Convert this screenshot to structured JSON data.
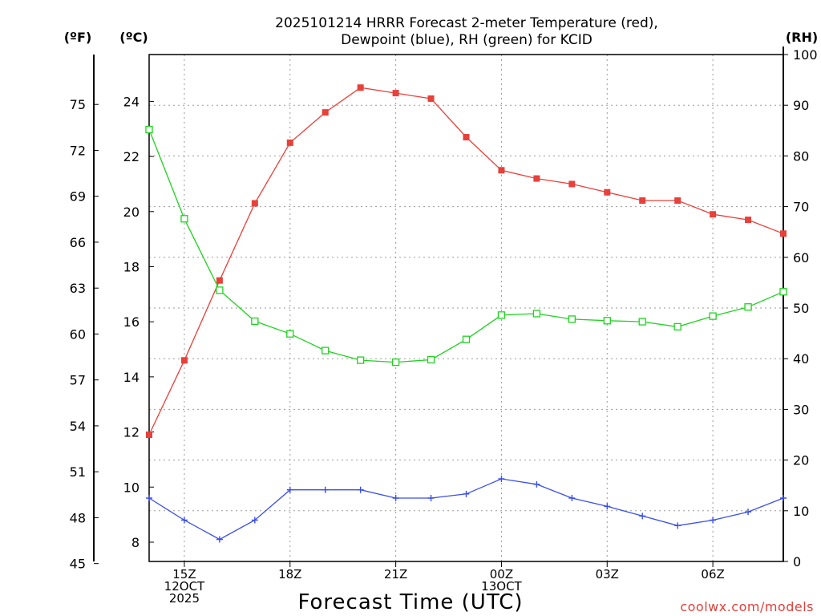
{
  "chart_data": {
    "type": "line",
    "title_line1": "2025101214 HRRR Forecast 2-meter Temperature (red),",
    "title_line2": "Dewpoint (blue), RH (green) for KCID",
    "xlabel": "Forecast Time (UTC)",
    "unit_left_f": "(ºF)",
    "unit_left_c": "(ºC)",
    "unit_right_rh": "(RH)",
    "credit": "coolwx.com/models",
    "x_hours": [
      14,
      15,
      16,
      17,
      18,
      19,
      20,
      21,
      22,
      23,
      24,
      25,
      26,
      27,
      28,
      29,
      30,
      31,
      32
    ],
    "x_ticks": [
      {
        "hour": 15,
        "lines": [
          "15Z",
          "12OCT",
          "2025"
        ]
      },
      {
        "hour": 18,
        "lines": [
          "18Z"
        ]
      },
      {
        "hour": 21,
        "lines": [
          "21Z"
        ]
      },
      {
        "hour": 24,
        "lines": [
          "00Z",
          "13OCT"
        ]
      },
      {
        "hour": 27,
        "lines": [
          "03Z"
        ]
      },
      {
        "hour": 30,
        "lines": [
          "06Z"
        ]
      }
    ],
    "xlim": [
      14,
      32
    ],
    "c_axis": {
      "range": [
        7.3,
        25.7
      ],
      "ticks": [
        8,
        10,
        12,
        14,
        16,
        18,
        20,
        22,
        24
      ]
    },
    "f_axis": {
      "ticks": [
        45,
        48,
        51,
        54,
        57,
        60,
        63,
        66,
        69,
        72,
        75
      ]
    },
    "rh_axis": {
      "range": [
        0,
        100
      ],
      "ticks": [
        0,
        10,
        20,
        30,
        40,
        50,
        60,
        70,
        80,
        90,
        100
      ]
    },
    "series": [
      {
        "name": "Temperature",
        "unit": "C",
        "color": "#e8403a",
        "marker": "filled-square",
        "values": [
          11.9,
          14.6,
          17.5,
          20.3,
          22.5,
          23.6,
          24.5,
          24.3,
          24.1,
          22.7,
          21.5,
          21.2,
          21.0,
          20.7,
          20.4,
          20.4,
          19.9,
          19.7,
          19.2
        ]
      },
      {
        "name": "Dewpoint",
        "unit": "C",
        "color": "#3a4fe8",
        "marker": "plus",
        "values": [
          9.6,
          8.8,
          8.1,
          8.8,
          9.9,
          9.9,
          9.9,
          9.6,
          9.6,
          9.75,
          10.3,
          10.1,
          9.6,
          9.3,
          8.95,
          8.6,
          8.8,
          9.1,
          9.6
        ]
      },
      {
        "name": "Relative Humidity",
        "unit": "%",
        "color": "#1ed31e",
        "marker": "open-square",
        "values": [
          85.2,
          67.6,
          53.5,
          47.4,
          44.9,
          41.6,
          39.7,
          39.3,
          39.8,
          43.8,
          48.6,
          48.9,
          47.8,
          47.5,
          47.3,
          46.3,
          48.4,
          50.2,
          53.2
        ]
      }
    ]
  }
}
